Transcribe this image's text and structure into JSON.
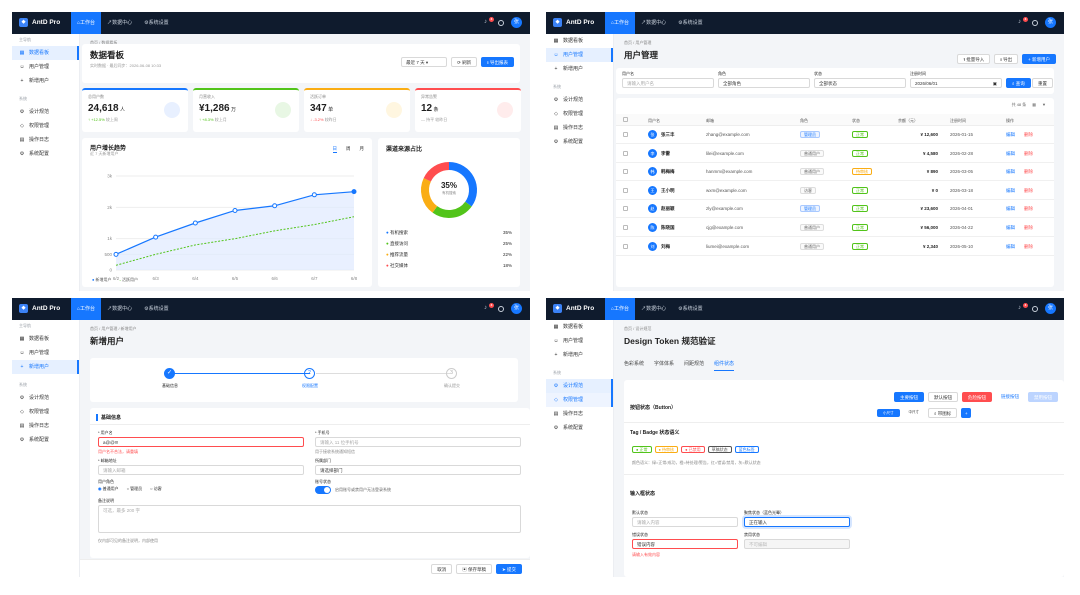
{
  "app": {
    "logo": "AntD Pro",
    "nav": [
      "工作台",
      "数据中心",
      "系统设置"
    ],
    "badge": "3",
    "avatar": "张"
  },
  "sidebar": {
    "group1": "主导航",
    "items": [
      "数据看板",
      "用户管理",
      "新增用户"
    ],
    "group2": "系统",
    "items2": [
      "设计规范",
      "权限管理",
      "操作日志",
      "系统配置"
    ]
  },
  "dash": {
    "breadcrumb": "首页 / 数据看板",
    "title": "数据看板",
    "subtitle": "实时数据 · 最后同步：2026-06-08 10:33",
    "range": "最近 7 天",
    "refresh": "刷新",
    "export": "导出报表",
    "stats": [
      {
        "label": "总用户数",
        "value": "24,618",
        "unit": "人",
        "trend": "↑ +12.5%",
        "note": "较上周",
        "color": "#1677ff",
        "bg": "#e8f0ff",
        "tc": "#52c41a"
      },
      {
        "label": "月营收入",
        "value": "¥1,286",
        "unit": "万",
        "trend": "↑ +8.3%",
        "note": "较上月",
        "color": "#52c41a",
        "bg": "#e8f7e4",
        "tc": "#52c41a"
      },
      {
        "label": "活跃订单",
        "value": "347",
        "unit": "单",
        "trend": "↓ -3.2%",
        "note": "较昨日",
        "color": "#faad14",
        "bg": "#fff6e0",
        "tc": "#ff4d4f"
      },
      {
        "label": "异常告警",
        "value": "12",
        "unit": "条",
        "trend": "— 持平",
        "note": "较昨日",
        "color": "#ff4d4f",
        "bg": "#ffecec",
        "tc": "#999"
      }
    ],
    "chart_title": "用户增长趋势",
    "chart_sub": "近 7 天新增用户",
    "tabs": [
      "日",
      "周",
      "月"
    ],
    "legend": [
      "新增用户",
      "活跃用户"
    ],
    "donut_title": "渠道来源占比",
    "donut_center": "35%",
    "donut_center_sub": "有机搜索",
    "channels": [
      {
        "name": "有机搜索",
        "pct": "35%",
        "color": "#1677ff"
      },
      {
        "name": "直接访问",
        "pct": "25%",
        "color": "#52c41a"
      },
      {
        "name": "推荐流量",
        "pct": "22%",
        "color": "#faad14"
      },
      {
        "name": "社交媒体",
        "pct": "18%",
        "color": "#ff4d4f"
      }
    ]
  },
  "chart_data": {
    "type": "line",
    "categories": [
      "6/2",
      "6/3",
      "6/4",
      "6/5",
      "6/6",
      "6/7",
      "6/8"
    ],
    "ylim": [
      0,
      3000
    ],
    "yticks": [
      "3k",
      "2k",
      "1k",
      "500",
      "0"
    ],
    "series": [
      {
        "name": "新增用户",
        "values": [
          500,
          1050,
          1500,
          1900,
          2050,
          2400,
          2500
        ]
      },
      {
        "name": "活跃用户",
        "values": [
          150,
          500,
          800,
          1000,
          1250,
          1450,
          1700
        ]
      }
    ]
  },
  "users": {
    "breadcrumb": "首页 / 用户管理",
    "title": "用户管理",
    "import": "批量导入",
    "export": "导出",
    "add": "+ 新增用户",
    "f_name": "用户名",
    "f_name_ph": "请输入用户名",
    "f_role": "角色",
    "f_role_v": "全部角色",
    "f_status": "状态",
    "f_status_v": "全部状态",
    "f_date": "注册时间",
    "f_date_v": "2026/06/01",
    "query": "查询",
    "reset": "重置",
    "total": "共 48 条",
    "cols": [
      "用户名",
      "邮箱",
      "角色",
      "状态",
      "余额（元）",
      "注册时间",
      "操作"
    ],
    "edit": "编辑",
    "del": "删除",
    "rows": [
      {
        "n": "张三丰",
        "e": "zhang@example.com",
        "r": "管理员",
        "rc": "#1677ff",
        "s": "正常",
        "sc": "#52c41a",
        "b": "¥ 12,600",
        "d": "2026-01-15"
      },
      {
        "n": "李雷",
        "e": "lilei@example.com",
        "r": "普通用户",
        "rc": "#666",
        "s": "正常",
        "sc": "#52c41a",
        "b": "¥ 4,580",
        "d": "2026-02-28"
      },
      {
        "n": "韩梅梅",
        "e": "hanmm@example.com",
        "r": "普通用户",
        "rc": "#666",
        "s": "待审核",
        "sc": "#faad14",
        "b": "¥ 890",
        "d": "2026-03-05"
      },
      {
        "n": "王小明",
        "e": "wxm@example.com",
        "r": "访客",
        "rc": "#666",
        "s": "正常",
        "sc": "#52c41a",
        "b": "¥ 0",
        "d": "2026-03-18"
      },
      {
        "n": "赵丽颖",
        "e": "zly@example.com",
        "r": "管理员",
        "rc": "#1677ff",
        "s": "正常",
        "sc": "#52c41a",
        "b": "¥ 23,600",
        "d": "2026-04-01"
      },
      {
        "n": "陈晓国",
        "e": "cjg@example.com",
        "r": "普通用户",
        "rc": "#666",
        "s": "正常",
        "sc": "#52c41a",
        "b": "¥ 56,000",
        "d": "2026-04-22"
      },
      {
        "n": "刘梅",
        "e": "liumei@example.com",
        "r": "普通用户",
        "rc": "#666",
        "s": "正常",
        "sc": "#52c41a",
        "b": "¥ 2,340",
        "d": "2026-05-10"
      }
    ]
  },
  "form": {
    "breadcrumb": "首页 / 用户管理 / 新增用户",
    "title": "新增用户",
    "steps": [
      "基础信息",
      "权限配置",
      "确认提交"
    ],
    "section": "基础信息",
    "l_user": "* 用户名",
    "v_user": "a@@!!!",
    "err_user": "用户名不合法，请重填",
    "l_phone": "* 手机号",
    "ph_phone": "请输入 11 位手机号",
    "hint_phone": "用于接收系统通知短信",
    "l_email": "* 邮箱地址",
    "ph_email": "请输入邮箱",
    "l_dept": "所属部门",
    "ph_dept": "请选择部门",
    "l_role": "用户角色",
    "roles": [
      "普通用户",
      "管理员",
      "访客"
    ],
    "l_notify": "账号状态",
    "notify_text": "启用账号或禁用户无法登录系统",
    "l_note": "备注说明",
    "ph_note": "可选，最多 200 字",
    "hint_note": "仅内部可见的备注说明，内部使用",
    "cancel": "取消",
    "save": "保存草稿",
    "submit": "提交"
  },
  "tokens": {
    "breadcrumb": "首页 / 设计规范",
    "title": "Design Token 规范验证",
    "tabs": [
      "色彩系统",
      "字体体系",
      "间距规范",
      "组件状态"
    ],
    "btn_title": "按钮状态（Button）",
    "btns": [
      "主要按钮",
      "默认按钮",
      "危险按钮",
      "链接按钮",
      "禁用按钮"
    ],
    "small": [
      "小尺寸",
      "中尺寸",
      "带图标"
    ],
    "tag_title": "Tag / Badge 状态语义",
    "tags": [
      {
        "t": "● 正常",
        "c": "#52c41a"
      },
      {
        "t": "● 待审核",
        "c": "#faad14"
      },
      {
        "t": "● 已禁用",
        "c": "#ff4d4f"
      },
      {
        "t": "草稿状态",
        "c": "#555"
      },
      {
        "t": "蓝色标签",
        "c": "#1677ff"
      }
    ],
    "tag_note": "颜色语义：绿=正常/成功，橙=待处理/警告，红=错误/禁用，灰=默认状态",
    "input_title": "输入框状态",
    "l_default": "默认状态",
    "ph_default": "请输入内容",
    "l_focus": "聚焦状态（蓝色光晕）",
    "v_focus": "正在输入",
    "l_error": "错误状态",
    "v_error": "错误内容",
    "err_note": "请输入有效内容",
    "l_disabled": "禁用状态",
    "v_disabled": "不可编辑"
  }
}
